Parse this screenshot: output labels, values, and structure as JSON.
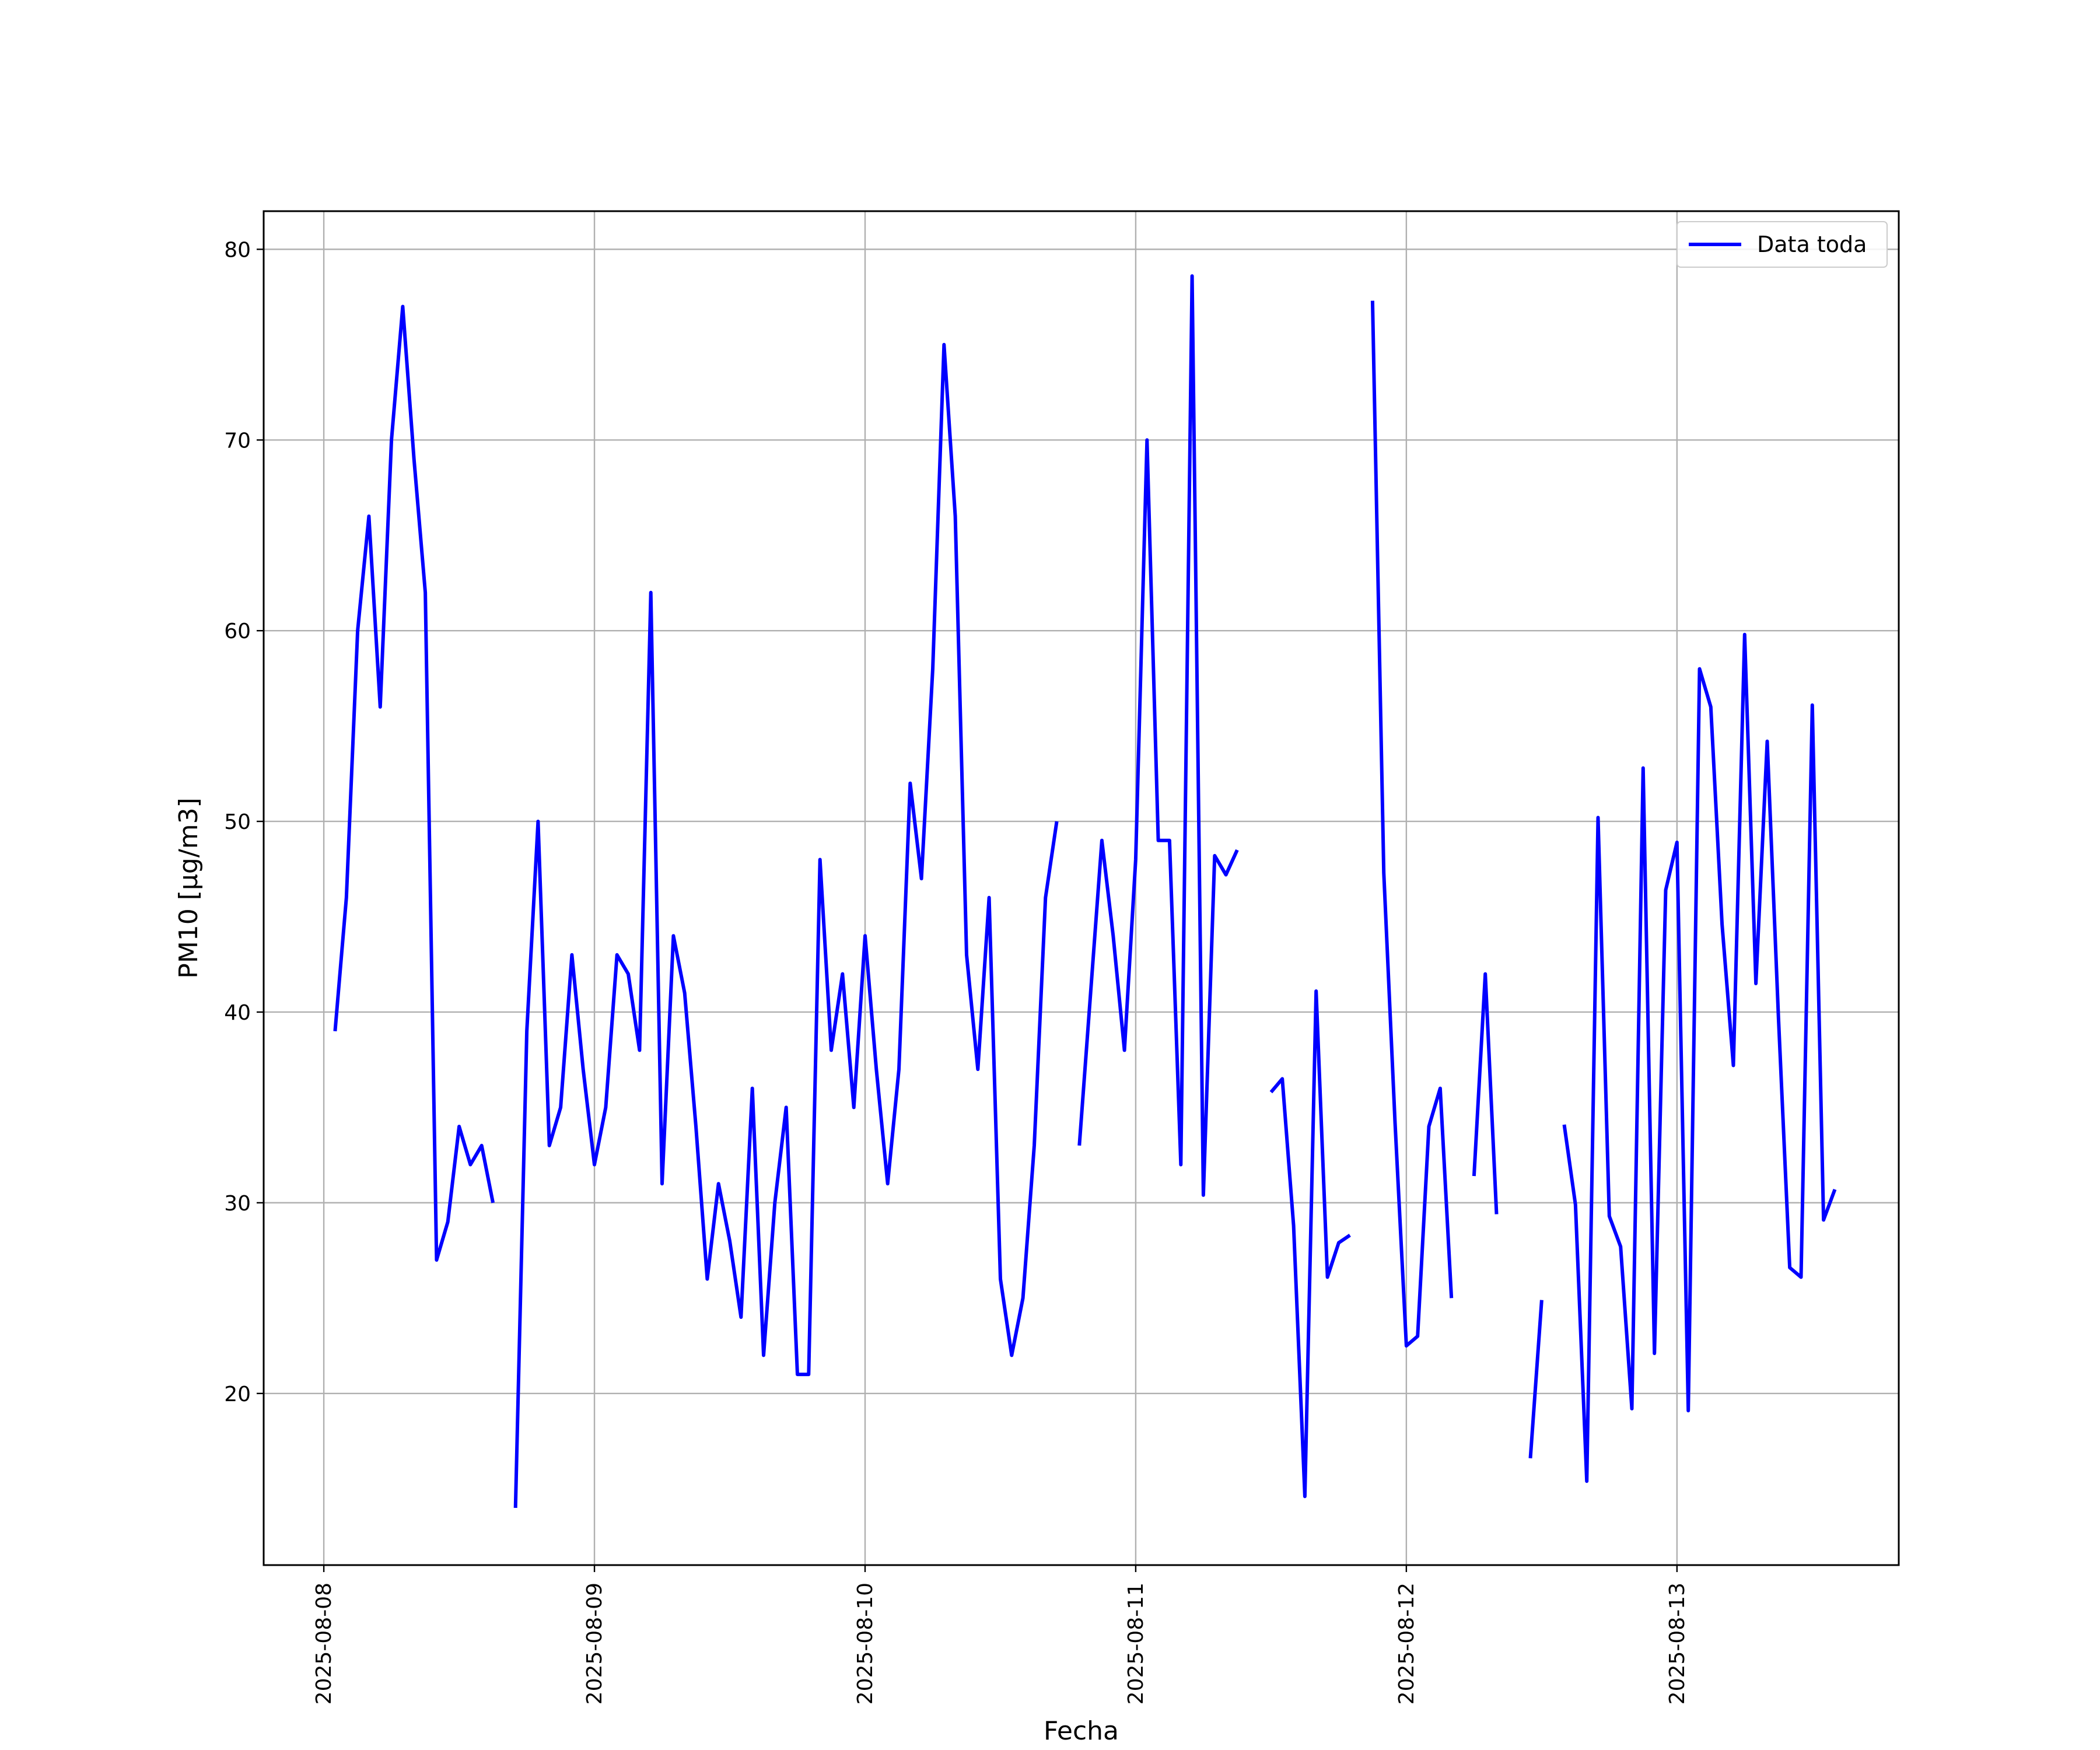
{
  "chart_data": {
    "type": "line",
    "title": "",
    "xlabel": "Fecha",
    "ylabel": "PM10 [μg/m3]",
    "xlim": [
      "2025-08-07T18:40",
      "2025-08-13T19:40"
    ],
    "ylim": [
      11,
      82
    ],
    "x_ticks": [
      "2025-08-08",
      "2025-08-09",
      "2025-08-10",
      "2025-08-11",
      "2025-08-12",
      "2025-08-13"
    ],
    "y_ticks": [
      20,
      30,
      40,
      50,
      60,
      70,
      80
    ],
    "grid": true,
    "legend_position": "top-right",
    "series": [
      {
        "name": "Data toda",
        "color": "#0000ff",
        "points": [
          [
            "2025-08-08T01:00",
            39
          ],
          [
            "2025-08-08T02:00",
            46
          ],
          [
            "2025-08-08T03:00",
            60
          ],
          [
            "2025-08-08T04:00",
            66
          ],
          [
            "2025-08-08T05:00",
            56
          ],
          [
            "2025-08-08T06:00",
            70
          ],
          [
            "2025-08-08T07:00",
            77
          ],
          [
            "2025-08-08T08:00",
            69
          ],
          [
            "2025-08-08T09:00",
            62
          ],
          [
            "2025-08-08T10:00",
            27
          ],
          [
            "2025-08-08T11:00",
            29
          ],
          [
            "2025-08-08T12:00",
            34
          ],
          [
            "2025-08-08T13:00",
            32
          ],
          [
            "2025-08-08T14:00",
            33
          ],
          [
            "2025-08-08T15:00",
            30
          ],
          [
            "2025-08-08T16:00",
            null
          ],
          [
            "2025-08-08T17:00",
            14
          ],
          [
            "2025-08-08T18:00",
            39
          ],
          [
            "2025-08-08T19:00",
            50
          ],
          [
            "2025-08-08T20:00",
            33
          ],
          [
            "2025-08-08T21:00",
            35
          ],
          [
            "2025-08-08T22:00",
            43
          ],
          [
            "2025-08-08T23:00",
            37
          ],
          [
            "2025-08-09T00:00",
            32
          ],
          [
            "2025-08-09T01:00",
            35
          ],
          [
            "2025-08-09T02:00",
            43
          ],
          [
            "2025-08-09T03:00",
            42
          ],
          [
            "2025-08-09T04:00",
            38
          ],
          [
            "2025-08-09T05:00",
            62
          ],
          [
            "2025-08-09T06:00",
            31
          ],
          [
            "2025-08-09T07:00",
            44
          ],
          [
            "2025-08-09T08:00",
            41
          ],
          [
            "2025-08-09T09:00",
            34
          ],
          [
            "2025-08-09T10:00",
            26
          ],
          [
            "2025-08-09T11:00",
            31
          ],
          [
            "2025-08-09T12:00",
            28
          ],
          [
            "2025-08-09T13:00",
            24
          ],
          [
            "2025-08-09T14:00",
            36
          ],
          [
            "2025-08-09T15:00",
            22
          ],
          [
            "2025-08-09T16:00",
            30
          ],
          [
            "2025-08-09T17:00",
            35
          ],
          [
            "2025-08-09T18:00",
            21
          ],
          [
            "2025-08-09T19:00",
            21
          ],
          [
            "2025-08-09T20:00",
            48
          ],
          [
            "2025-08-09T21:00",
            38
          ],
          [
            "2025-08-09T22:00",
            42
          ],
          [
            "2025-08-09T23:00",
            35
          ],
          [
            "2025-08-10T00:00",
            44
          ],
          [
            "2025-08-10T01:00",
            37
          ],
          [
            "2025-08-10T02:00",
            31
          ],
          [
            "2025-08-10T03:00",
            37
          ],
          [
            "2025-08-10T04:00",
            52
          ],
          [
            "2025-08-10T05:00",
            47
          ],
          [
            "2025-08-10T06:00",
            58
          ],
          [
            "2025-08-10T07:00",
            75
          ],
          [
            "2025-08-10T08:00",
            66
          ],
          [
            "2025-08-10T09:00",
            43
          ],
          [
            "2025-08-10T10:00",
            37
          ],
          [
            "2025-08-10T11:00",
            46
          ],
          [
            "2025-08-10T12:00",
            26
          ],
          [
            "2025-08-10T13:00",
            22
          ],
          [
            "2025-08-10T14:00",
            25
          ],
          [
            "2025-08-10T15:00",
            33
          ],
          [
            "2025-08-10T16:00",
            46
          ],
          [
            "2025-08-10T17:00",
            50
          ],
          [
            "2025-08-10T18:00",
            null
          ],
          [
            "2025-08-10T19:00",
            33
          ],
          [
            "2025-08-10T20:00",
            41
          ],
          [
            "2025-08-10T21:00",
            49
          ],
          [
            "2025-08-10T22:00",
            44
          ],
          [
            "2025-08-10T23:00",
            38
          ],
          [
            "2025-08-11T00:00",
            48
          ],
          [
            "2025-08-11T01:00",
            70
          ],
          [
            "2025-08-11T02:00",
            49
          ],
          [
            "2025-08-11T03:00",
            49
          ],
          [
            "2025-08-11T04:00",
            32
          ],
          [
            "2025-08-11T05:00",
            78.6
          ],
          [
            "2025-08-11T06:00",
            30.4
          ],
          [
            "2025-08-11T07:00",
            48.2
          ],
          [
            "2025-08-11T08:00",
            47.2
          ],
          [
            "2025-08-11T09:00",
            48.5
          ],
          [
            "2025-08-11T10:00",
            null
          ],
          [
            "2025-08-11T11:00",
            null
          ],
          [
            "2025-08-11T12:00",
            35.8
          ],
          [
            "2025-08-11T13:00",
            36.5
          ],
          [
            "2025-08-11T14:00",
            28.8
          ],
          [
            "2025-08-11T15:00",
            14.6
          ],
          [
            "2025-08-11T16:00",
            41.1
          ],
          [
            "2025-08-11T17:00",
            26.1
          ],
          [
            "2025-08-11T18:00",
            27.9
          ],
          [
            "2025-08-11T19:00",
            28.3
          ],
          [
            "2025-08-11T20:00",
            null
          ],
          [
            "2025-08-11T21:00",
            77.3
          ],
          [
            "2025-08-11T22:00",
            47.3
          ],
          [
            "2025-08-11T23:00",
            34.2
          ],
          [
            "2025-08-12T00:00",
            22.5
          ],
          [
            "2025-08-12T01:00",
            23.0
          ],
          [
            "2025-08-12T02:00",
            34.0
          ],
          [
            "2025-08-12T03:00",
            36.0
          ],
          [
            "2025-08-12T04:00",
            25.0
          ],
          [
            "2025-08-12T05:00",
            null
          ],
          [
            "2025-08-12T06:00",
            31.4
          ],
          [
            "2025-08-12T07:00",
            42.0
          ],
          [
            "2025-08-12T08:00",
            29.4
          ],
          [
            "2025-08-12T09:00",
            null
          ],
          [
            "2025-08-12T10:00",
            null
          ],
          [
            "2025-08-12T11:00",
            16.6
          ],
          [
            "2025-08-12T12:00",
            24.9
          ],
          [
            "2025-08-12T13:00",
            null
          ],
          [
            "2025-08-12T14:00",
            34.1
          ],
          [
            "2025-08-12T15:00",
            29.9
          ],
          [
            "2025-08-12T16:00",
            15.4
          ],
          [
            "2025-08-12T17:00",
            50.2
          ],
          [
            "2025-08-12T18:00",
            29.3
          ],
          [
            "2025-08-12T19:00",
            27.7
          ],
          [
            "2025-08-12T20:00",
            19.2
          ],
          [
            "2025-08-12T21:00",
            52.8
          ],
          [
            "2025-08-12T22:00",
            22.1
          ],
          [
            "2025-08-12T23:00",
            46.4
          ],
          [
            "2025-08-13T00:00",
            48.9
          ],
          [
            "2025-08-13T01:00",
            19.1
          ],
          [
            "2025-08-13T02:00",
            58.0
          ],
          [
            "2025-08-13T03:00",
            56.0
          ],
          [
            "2025-08-13T04:00",
            44.6
          ],
          [
            "2025-08-13T05:00",
            37.2
          ],
          [
            "2025-08-13T06:00",
            59.8
          ],
          [
            "2025-08-13T07:00",
            41.5
          ],
          [
            "2025-08-13T08:00",
            54.2
          ],
          [
            "2025-08-13T09:00",
            39.7
          ],
          [
            "2025-08-13T10:00",
            26.6
          ],
          [
            "2025-08-13T11:00",
            26.1
          ],
          [
            "2025-08-13T12:00",
            56.1
          ],
          [
            "2025-08-13T13:00",
            29.1
          ],
          [
            "2025-08-13T14:00",
            30.7
          ]
        ]
      }
    ]
  }
}
